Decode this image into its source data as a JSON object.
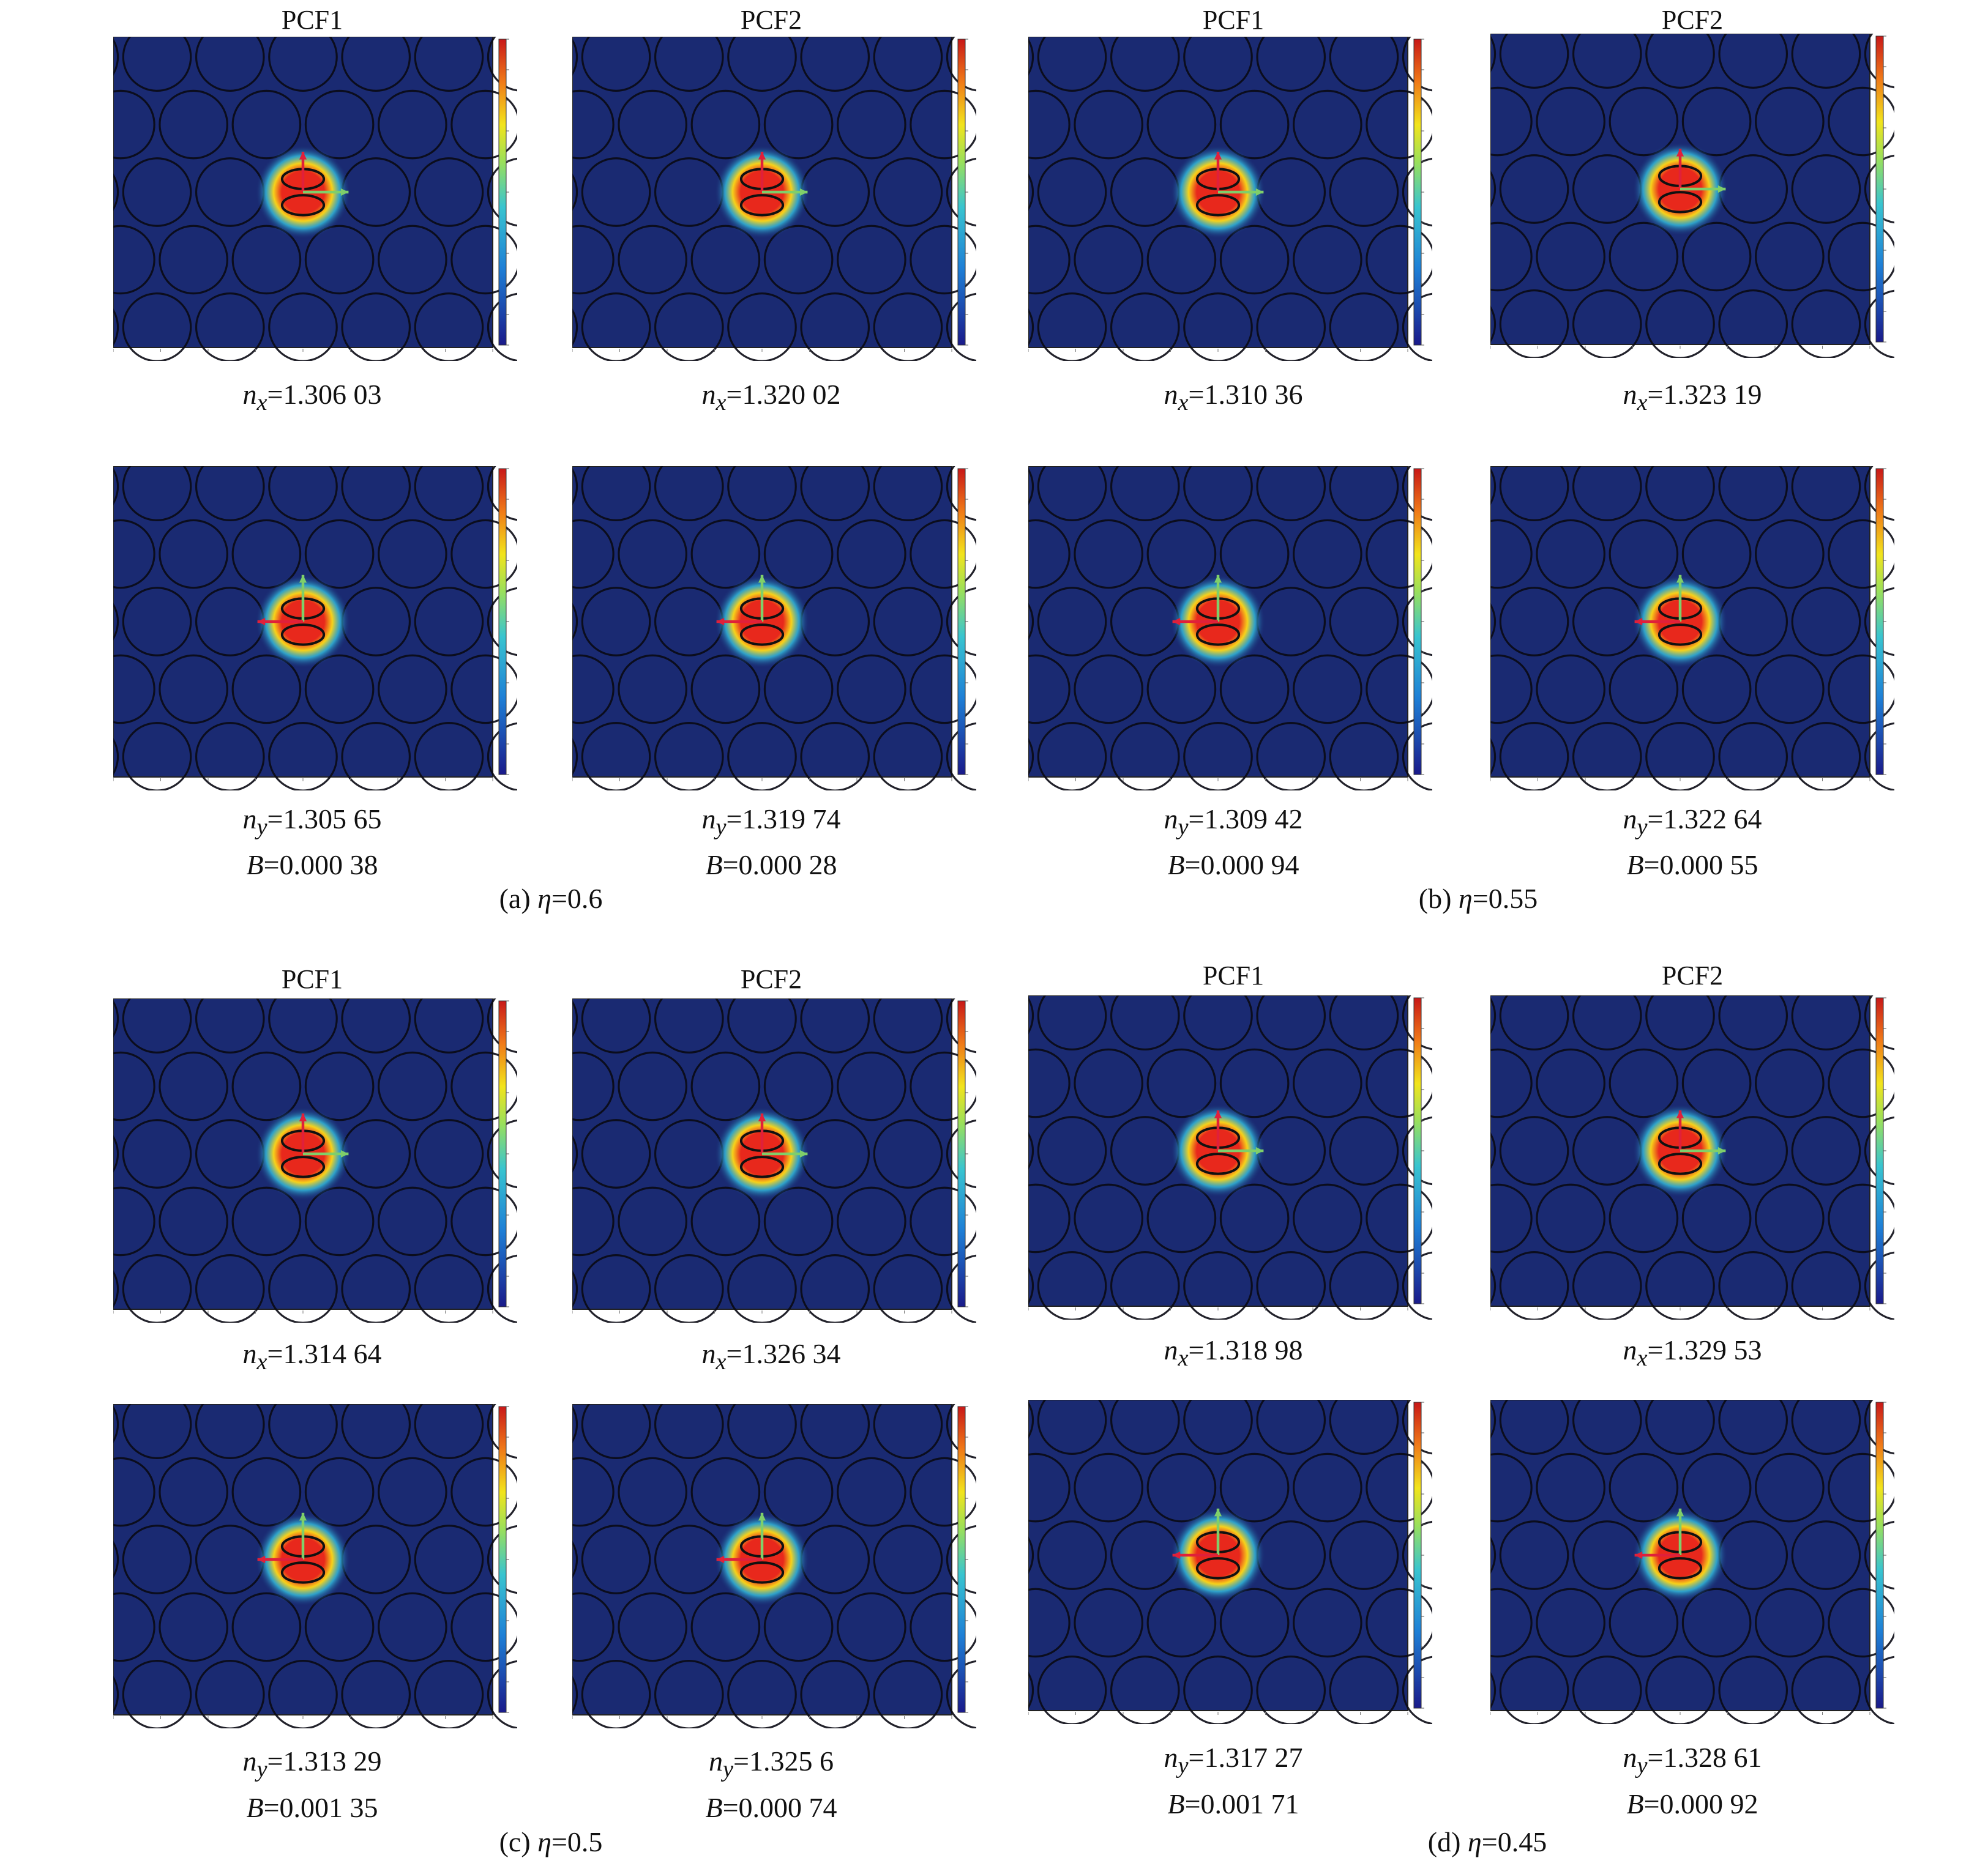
{
  "figure": {
    "groups": [
      {
        "caption": "(a) η=0.6",
        "caption_prefix": "(a) ",
        "caption_eta": "η",
        "caption_value": "=0.6",
        "columns": [
          {
            "title": "PCF1",
            "nx": "=1.306 03",
            "ny": "=1.305 65",
            "B": "=0.000 38"
          },
          {
            "title": "PCF2",
            "nx": "=1.320 02",
            "ny": "=1.319 74",
            "B": "=0.000 28"
          }
        ]
      },
      {
        "caption": "(b) η=0.55",
        "caption_prefix": "(b) ",
        "caption_eta": "η",
        "caption_value": "=0.55",
        "columns": [
          {
            "title": "PCF1",
            "nx": "=1.310 36",
            "ny": "=1.309 42",
            "B": "=0.000 94"
          },
          {
            "title": "PCF2",
            "nx": "=1.323 19",
            "ny": "=1.322 64",
            "B": "=0.000 55"
          }
        ]
      },
      {
        "caption": "(c) η=0.5",
        "caption_prefix": "(c) ",
        "caption_eta": "η",
        "caption_value": "=0.5",
        "columns": [
          {
            "title": "PCF1",
            "nx": "=1.314 64",
            "ny": "=1.313 29",
            "B": "=0.001 35"
          },
          {
            "title": "PCF2",
            "nx": "=1.326 34",
            "ny": "=1.325 6",
            "B": "=0.000 74"
          }
        ]
      },
      {
        "caption": "(d) η=0.45",
        "caption_prefix": "(d) ",
        "caption_eta": "η",
        "caption_value": "=0.45",
        "columns": [
          {
            "title": "PCF1",
            "nx": "=1.318 98",
            "ny": "=1.317 27",
            "B": "=0.001 71"
          },
          {
            "title": "PCF2",
            "nx": "=1.329 53",
            "ny": "=1.328 61",
            "B": "=0.000 92"
          }
        ]
      }
    ],
    "symbols": {
      "n": "n",
      "x": "x",
      "y": "y",
      "B": "B"
    },
    "colors": {
      "background_field": "#1a2a72",
      "mode_core": "#e8281c",
      "mode_edge": "#f7d21a",
      "mode_halo": "#32b6d9",
      "arrow_red": "#e0203a",
      "arrow_green": "#7fcf6a"
    },
    "panels": [
      {
        "group": 0,
        "col": 0,
        "pol": "x"
      },
      {
        "group": 0,
        "col": 1,
        "pol": "x"
      },
      {
        "group": 1,
        "col": 0,
        "pol": "x"
      },
      {
        "group": 1,
        "col": 1,
        "pol": "x"
      },
      {
        "group": 0,
        "col": 0,
        "pol": "y"
      },
      {
        "group": 0,
        "col": 1,
        "pol": "y"
      },
      {
        "group": 1,
        "col": 0,
        "pol": "y"
      },
      {
        "group": 1,
        "col": 1,
        "pol": "y"
      },
      {
        "group": 2,
        "col": 0,
        "pol": "x"
      },
      {
        "group": 2,
        "col": 1,
        "pol": "x"
      },
      {
        "group": 3,
        "col": 0,
        "pol": "x"
      },
      {
        "group": 3,
        "col": 1,
        "pol": "x"
      },
      {
        "group": 2,
        "col": 0,
        "pol": "y"
      },
      {
        "group": 2,
        "col": 1,
        "pol": "y"
      },
      {
        "group": 3,
        "col": 0,
        "pol": "y"
      },
      {
        "group": 3,
        "col": 1,
        "pol": "y"
      }
    ]
  }
}
